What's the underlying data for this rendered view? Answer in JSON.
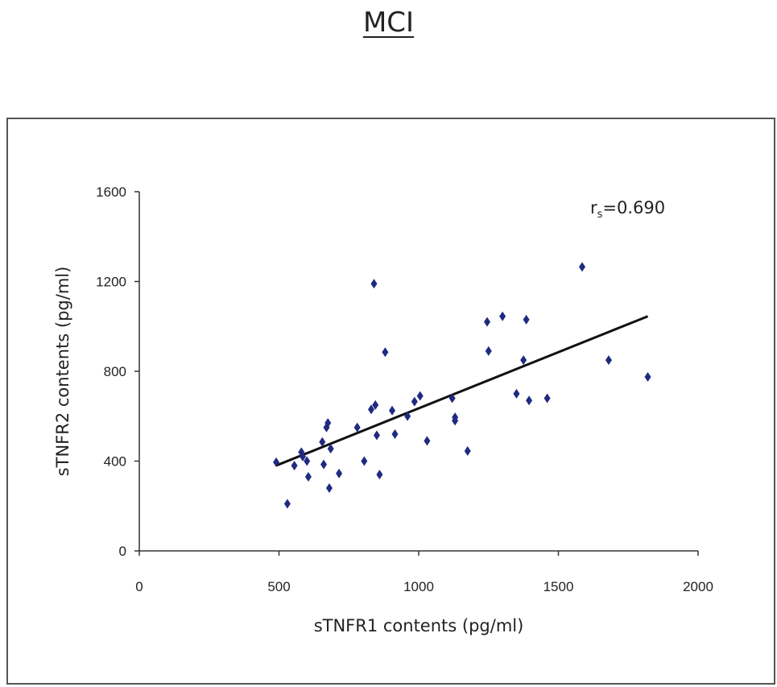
{
  "title": "MCI",
  "chart_data": {
    "type": "scatter",
    "xlabel": "sTNFR1 contents (pg/ml)",
    "ylabel": "sTNFR2 contents (pg/ml)",
    "xlim": [
      0,
      2000
    ],
    "ylim": [
      0,
      1600
    ],
    "xticks": [
      0,
      500,
      1000,
      1500,
      2000
    ],
    "yticks": [
      0,
      400,
      800,
      1200,
      1600
    ],
    "xtick_labels": [
      "0",
      "500",
      "1000",
      "1500",
      "2000"
    ],
    "ytick_labels": [
      "0",
      "400",
      "800",
      "1200",
      "1600"
    ],
    "grid": false,
    "legend": "none",
    "annotation": {
      "main": "r",
      "sub": "s",
      "rest": "=0.690"
    },
    "marker_color": "#1f2a80",
    "trendline": {
      "x": [
        490,
        1820
      ],
      "y": [
        380,
        1045
      ]
    },
    "x": [
      490,
      530,
      555,
      580,
      585,
      600,
      605,
      655,
      660,
      670,
      675,
      680,
      685,
      715,
      780,
      805,
      830,
      840,
      845,
      850,
      860,
      880,
      905,
      915,
      960,
      985,
      1005,
      1030,
      1120,
      1130,
      1130,
      1175,
      1245,
      1250,
      1300,
      1350,
      1375,
      1385,
      1395,
      1460,
      1585,
      1680,
      1820
    ],
    "y": [
      395,
      210,
      380,
      440,
      420,
      400,
      330,
      485,
      385,
      550,
      570,
      280,
      455,
      345,
      550,
      400,
      630,
      1190,
      650,
      515,
      340,
      885,
      625,
      520,
      600,
      665,
      690,
      490,
      680,
      595,
      580,
      445,
      1020,
      890,
      1045,
      700,
      850,
      1030,
      670,
      680,
      1265,
      850,
      775
    ]
  }
}
